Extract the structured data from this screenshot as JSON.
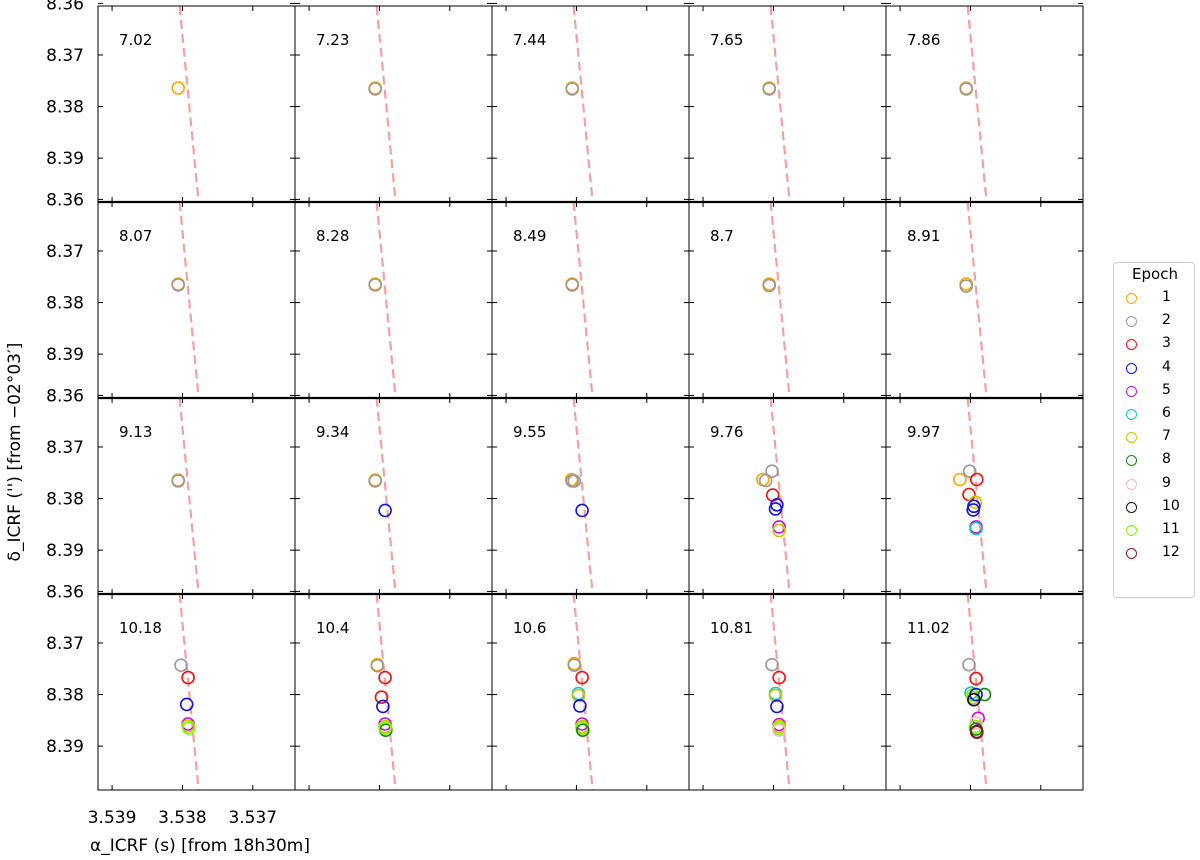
{
  "chart_data": {
    "type": "scatter",
    "xlabel": "α_ICRF (s) [from 18h30m]",
    "ylabel": "δ_ICRF ('') [from −02°03′]",
    "x_ticks": [
      "3.539",
      "3.538",
      "3.537"
    ],
    "y_ticks": [
      "8.36",
      "8.37",
      "8.38",
      "8.39"
    ],
    "xlim": [
      3.5392,
      3.5364
    ],
    "ylim": [
      8.3605,
      8.3985
    ],
    "y_inverted": true,
    "grid": false,
    "legend": {
      "title": "Epoch",
      "placement": "right",
      "entries": [
        {
          "label": "1",
          "color": "#ffa500"
        },
        {
          "label": "2",
          "color": "#999999"
        },
        {
          "label": "3",
          "color": "#ee1111"
        },
        {
          "label": "4",
          "color": "#1111dd"
        },
        {
          "label": "5",
          "color": "#cc11cc"
        },
        {
          "label": "6",
          "color": "#11c4c4"
        },
        {
          "label": "7",
          "color": "#c8c800"
        },
        {
          "label": "8",
          "color": "#118811"
        },
        {
          "label": "9",
          "color": "#ffb6c1"
        },
        {
          "label": "10",
          "color": "#111111"
        },
        {
          "label": "11",
          "color": "#7cfc00"
        },
        {
          "label": "12",
          "color": "#8b1a1a"
        }
      ]
    },
    "dashed_line": {
      "color": "#f4a0a0",
      "points": [
        [
          3.53804,
          8.3605
        ],
        [
          3.53777,
          8.3985
        ]
      ]
    },
    "panels": [
      {
        "label": "7.02",
        "points": [
          {
            "e": 1,
            "x": 3.53806,
            "y": 8.3764
          }
        ]
      },
      {
        "label": "7.23",
        "points": [
          {
            "e": 1,
            "x": 3.53806,
            "y": 8.3764
          },
          {
            "e": 2,
            "x": 3.53806,
            "y": 8.3766
          }
        ]
      },
      {
        "label": "7.44",
        "points": [
          {
            "e": 1,
            "x": 3.53806,
            "y": 8.3764
          },
          {
            "e": 2,
            "x": 3.53806,
            "y": 8.3766
          }
        ]
      },
      {
        "label": "7.65",
        "points": [
          {
            "e": 1,
            "x": 3.53806,
            "y": 8.3764
          },
          {
            "e": 2,
            "x": 3.53806,
            "y": 8.3766
          }
        ]
      },
      {
        "label": "7.86",
        "points": [
          {
            "e": 1,
            "x": 3.53806,
            "y": 8.3764
          },
          {
            "e": 2,
            "x": 3.53806,
            "y": 8.3766
          }
        ]
      },
      {
        "label": "8.07",
        "points": [
          {
            "e": 1,
            "x": 3.53806,
            "y": 8.3764
          },
          {
            "e": 2,
            "x": 3.53806,
            "y": 8.3766
          }
        ]
      },
      {
        "label": "8.28",
        "points": [
          {
            "e": 1,
            "x": 3.53806,
            "y": 8.3764
          },
          {
            "e": 2,
            "x": 3.53806,
            "y": 8.3766
          }
        ]
      },
      {
        "label": "8.49",
        "points": [
          {
            "e": 1,
            "x": 3.53806,
            "y": 8.3764
          },
          {
            "e": 2,
            "x": 3.53806,
            "y": 8.3766
          }
        ]
      },
      {
        "label": "8.7",
        "points": [
          {
            "e": 1,
            "x": 3.53806,
            "y": 8.3764
          },
          {
            "e": 2,
            "x": 3.53806,
            "y": 8.3767
          }
        ]
      },
      {
        "label": "8.91",
        "points": [
          {
            "e": 1,
            "x": 3.53806,
            "y": 8.3764
          },
          {
            "e": 2,
            "x": 3.53806,
            "y": 8.3768
          }
        ]
      },
      {
        "label": "9.13",
        "points": [
          {
            "e": 1,
            "x": 3.53806,
            "y": 8.3764
          },
          {
            "e": 2,
            "x": 3.53806,
            "y": 8.3766
          }
        ]
      },
      {
        "label": "9.34",
        "points": [
          {
            "e": 1,
            "x": 3.53806,
            "y": 8.3764
          },
          {
            "e": 2,
            "x": 3.53806,
            "y": 8.3766
          },
          {
            "e": 4,
            "x": 3.53792,
            "y": 8.3823
          }
        ]
      },
      {
        "label": "9.55",
        "points": [
          {
            "e": 1,
            "x": 3.53807,
            "y": 8.3763
          },
          {
            "e": 2,
            "x": 3.53806,
            "y": 8.3766
          },
          {
            "e": 2,
            "x": 3.53803,
            "y": 8.3766
          },
          {
            "e": 4,
            "x": 3.53792,
            "y": 8.3823
          }
        ]
      },
      {
        "label": "9.76",
        "points": [
          {
            "e": 1,
            "x": 3.53815,
            "y": 8.3763
          },
          {
            "e": 2,
            "x": 3.53811,
            "y": 8.3765
          },
          {
            "e": 2,
            "x": 3.53802,
            "y": 8.3747
          },
          {
            "e": 3,
            "x": 3.53801,
            "y": 8.3793
          },
          {
            "e": 4,
            "x": 3.53795,
            "y": 8.3812
          },
          {
            "e": 4,
            "x": 3.53797,
            "y": 8.382
          },
          {
            "e": 5,
            "x": 3.53792,
            "y": 8.3855
          },
          {
            "e": 7,
            "x": 3.53792,
            "y": 8.3862
          }
        ]
      },
      {
        "label": "9.97",
        "points": [
          {
            "e": 1,
            "x": 3.53815,
            "y": 8.3763
          },
          {
            "e": 2,
            "x": 3.53801,
            "y": 8.3747
          },
          {
            "e": 3,
            "x": 3.53791,
            "y": 8.3763
          },
          {
            "e": 3,
            "x": 3.53802,
            "y": 8.3792
          },
          {
            "e": 7,
            "x": 3.53793,
            "y": 8.3807
          },
          {
            "e": 4,
            "x": 3.53795,
            "y": 8.3815
          },
          {
            "e": 4,
            "x": 3.53796,
            "y": 8.3822
          },
          {
            "e": 5,
            "x": 3.53792,
            "y": 8.3855
          },
          {
            "e": 6,
            "x": 3.53792,
            "y": 8.3858
          }
        ]
      },
      {
        "label": "10.18",
        "points": [
          {
            "e": 2,
            "x": 3.53802,
            "y": 8.3743
          },
          {
            "e": 3,
            "x": 3.53792,
            "y": 8.3767
          },
          {
            "e": 4,
            "x": 3.53794,
            "y": 8.3819
          },
          {
            "e": 5,
            "x": 3.53792,
            "y": 8.3857
          },
          {
            "e": 7,
            "x": 3.53792,
            "y": 8.3861
          },
          {
            "e": 11,
            "x": 3.53791,
            "y": 8.3865
          }
        ]
      },
      {
        "label": "10.4",
        "points": [
          {
            "e": 1,
            "x": 3.53803,
            "y": 8.3742
          },
          {
            "e": 2,
            "x": 3.53803,
            "y": 8.3744
          },
          {
            "e": 3,
            "x": 3.53792,
            "y": 8.3767
          },
          {
            "e": 3,
            "x": 3.53797,
            "y": 8.3805
          },
          {
            "e": 4,
            "x": 3.53795,
            "y": 8.3823
          },
          {
            "e": 5,
            "x": 3.53792,
            "y": 8.3857
          },
          {
            "e": 7,
            "x": 3.53792,
            "y": 8.3862
          },
          {
            "e": 8,
            "x": 3.53791,
            "y": 8.3869
          },
          {
            "e": 11,
            "x": 3.53792,
            "y": 8.3865
          }
        ]
      },
      {
        "label": "10.6",
        "points": [
          {
            "e": 1,
            "x": 3.53803,
            "y": 8.374
          },
          {
            "e": 2,
            "x": 3.53803,
            "y": 8.3743
          },
          {
            "e": 3,
            "x": 3.53792,
            "y": 8.3767
          },
          {
            "e": 6,
            "x": 3.53797,
            "y": 8.3798
          },
          {
            "e": 7,
            "x": 3.53797,
            "y": 8.3802
          },
          {
            "e": 4,
            "x": 3.53795,
            "y": 8.3822
          },
          {
            "e": 5,
            "x": 3.53792,
            "y": 8.3857
          },
          {
            "e": 7,
            "x": 3.53792,
            "y": 8.3862
          },
          {
            "e": 11,
            "x": 3.53792,
            "y": 8.3865
          },
          {
            "e": 8,
            "x": 3.53791,
            "y": 8.3869
          }
        ]
      },
      {
        "label": "10.81",
        "points": [
          {
            "e": 2,
            "x": 3.53802,
            "y": 8.3742
          },
          {
            "e": 3,
            "x": 3.53792,
            "y": 8.3767
          },
          {
            "e": 6,
            "x": 3.53797,
            "y": 8.3798
          },
          {
            "e": 7,
            "x": 3.53797,
            "y": 8.3802
          },
          {
            "e": 4,
            "x": 3.53795,
            "y": 8.3823
          },
          {
            "e": 5,
            "x": 3.53792,
            "y": 8.3858
          },
          {
            "e": 7,
            "x": 3.53792,
            "y": 8.3862
          },
          {
            "e": 11,
            "x": 3.53792,
            "y": 8.3866
          },
          {
            "e": 9,
            "x": 3.53792,
            "y": 8.3869
          }
        ]
      },
      {
        "label": "11.02",
        "points": [
          {
            "e": 2,
            "x": 3.53802,
            "y": 8.3742
          },
          {
            "e": 3,
            "x": 3.53792,
            "y": 8.3769
          },
          {
            "e": 6,
            "x": 3.53799,
            "y": 8.3797
          },
          {
            "e": 11,
            "x": 3.53797,
            "y": 8.3801
          },
          {
            "e": 7,
            "x": 3.53796,
            "y": 8.3806
          },
          {
            "e": 4,
            "x": 3.53792,
            "y": 8.38
          },
          {
            "e": 8,
            "x": 3.5378,
            "y": 8.38
          },
          {
            "e": 10,
            "x": 3.53795,
            "y": 8.381
          },
          {
            "e": 5,
            "x": 3.53789,
            "y": 8.3846
          },
          {
            "e": 9,
            "x": 3.53792,
            "y": 8.3855
          },
          {
            "e": 11,
            "x": 3.53793,
            "y": 8.3862
          },
          {
            "e": 8,
            "x": 3.53792,
            "y": 8.3867
          },
          {
            "e": 10,
            "x": 3.53791,
            "y": 8.3872
          },
          {
            "e": 12,
            "x": 3.53791,
            "y": 8.3873
          }
        ]
      }
    ]
  }
}
